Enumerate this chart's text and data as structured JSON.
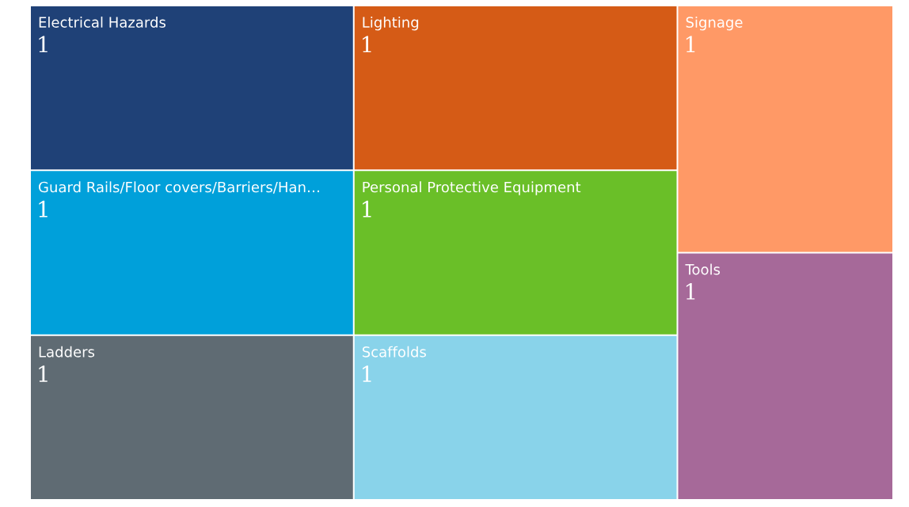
{
  "chart_data": {
    "type": "other",
    "categories": [
      "Electrical Hazards",
      "Lighting",
      "Signage",
      "Guard Rails/Floor covers/Barriers/Han…",
      "Personal Protective Equipment",
      "Tools",
      "Ladders",
      "Scaffolds"
    ],
    "values": [
      1,
      1,
      1,
      1,
      1,
      1,
      1,
      1
    ],
    "colors": [
      "#1f4177",
      "#d55b16",
      "#ff9966",
      "#00a0da",
      "#6abf28",
      "#a66999",
      "#5f6b73",
      "#89d3ea"
    ],
    "data_labels": true
  }
}
